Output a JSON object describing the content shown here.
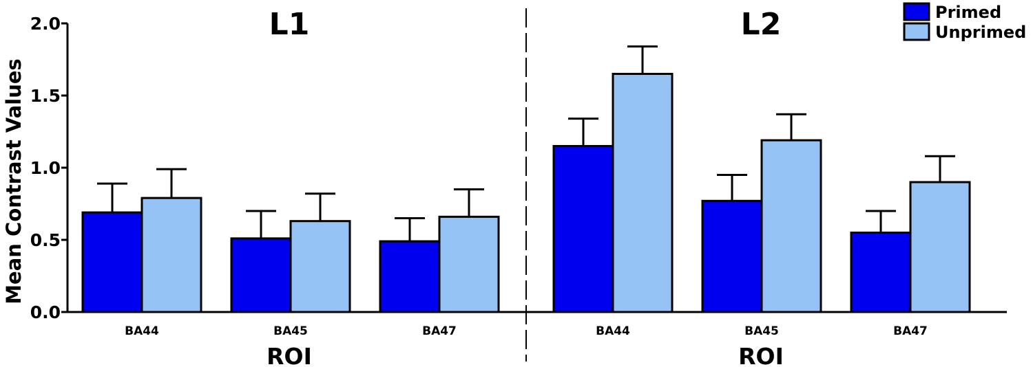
{
  "chart_data": {
    "type": "bar",
    "ylabel": "Mean Contrast Values",
    "ylim": [
      0,
      2.0
    ],
    "yticks": [
      "0.0",
      "0.5",
      "1.0",
      "1.5",
      "2.0"
    ],
    "grid": false,
    "legend_position": "top-right",
    "legend": [
      "Primed",
      "Unprimed"
    ],
    "colors": {
      "Primed": "#0000ee",
      "Unprimed": "#96c3f5"
    },
    "panels": [
      {
        "title": "L1",
        "xlabel": "ROI",
        "categories": [
          "BA44",
          "BA45",
          "BA47"
        ],
        "series": [
          {
            "name": "Primed",
            "values": [
              0.69,
              0.51,
              0.49
            ],
            "errors": [
              0.2,
              0.19,
              0.16
            ]
          },
          {
            "name": "Unprimed",
            "values": [
              0.79,
              0.63,
              0.66
            ],
            "errors": [
              0.2,
              0.19,
              0.19
            ]
          }
        ]
      },
      {
        "title": "L2",
        "xlabel": "ROI",
        "categories": [
          "BA44",
          "BA45",
          "BA47"
        ],
        "series": [
          {
            "name": "Primed",
            "values": [
              1.15,
              0.77,
              0.55
            ],
            "errors": [
              0.19,
              0.18,
              0.15
            ]
          },
          {
            "name": "Unprimed",
            "values": [
              1.65,
              1.19,
              0.9
            ],
            "errors": [
              0.19,
              0.18,
              0.18
            ]
          }
        ]
      }
    ]
  }
}
